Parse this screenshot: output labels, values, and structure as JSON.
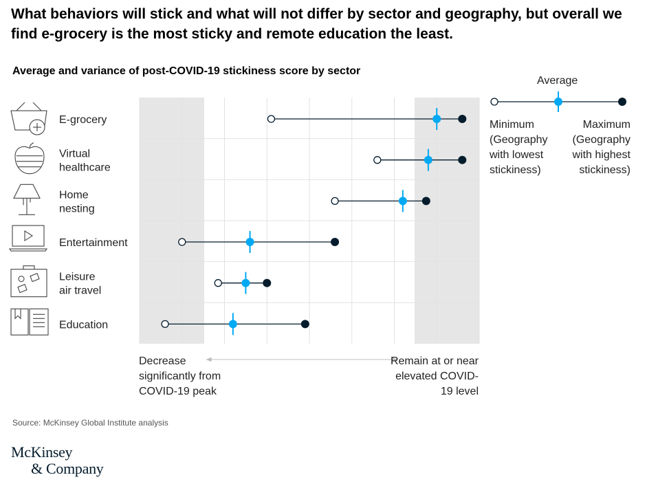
{
  "headline": "What behaviors will stick and what will not differ by sector and geography, but overall we find e-grocery is the most sticky and remote education the least.",
  "chart_data": {
    "type": "dumbbell",
    "title": "Average and variance of post-COVID-19 stickiness score by sector",
    "categories": [
      {
        "label": "E-grocery",
        "icon": "basket-icon",
        "min": 31,
        "avg": 70,
        "max": 76
      },
      {
        "label": "Virtual healthcare",
        "icon": "apple-icon",
        "min": 56,
        "avg": 68,
        "max": 76
      },
      {
        "label": "Home nesting",
        "icon": "lamp-icon",
        "min": 46,
        "avg": 62,
        "max": 67.5
      },
      {
        "label": "Entertainment",
        "icon": "laptop-icon",
        "min": 10,
        "avg": 26,
        "max": 46
      },
      {
        "label": "Leisure air travel",
        "icon": "suitcase-icon",
        "min": 18.5,
        "avg": 25,
        "max": 30
      },
      {
        "label": "Education",
        "icon": "book-icon",
        "min": 6,
        "avg": 22,
        "max": 39
      }
    ],
    "xlim": [
      0,
      80
    ],
    "legend": {
      "average": "Average",
      "minimum": "Minimum (Geography with lowest stickiness)",
      "maximum": "Maximum (Geography with highest stickiness)"
    },
    "axis_notes": {
      "left": "Decrease significantly from COVID-19 peak",
      "right": "Remain at or near elevated COVID-19 level"
    },
    "colors": {
      "average": "#00a9f4",
      "maximum": "#051c2c",
      "shade": "#e6e6e6"
    }
  },
  "source": "Source: McKinsey Global Institute analysis",
  "logo": [
    "McKinsey",
    "& Company"
  ]
}
